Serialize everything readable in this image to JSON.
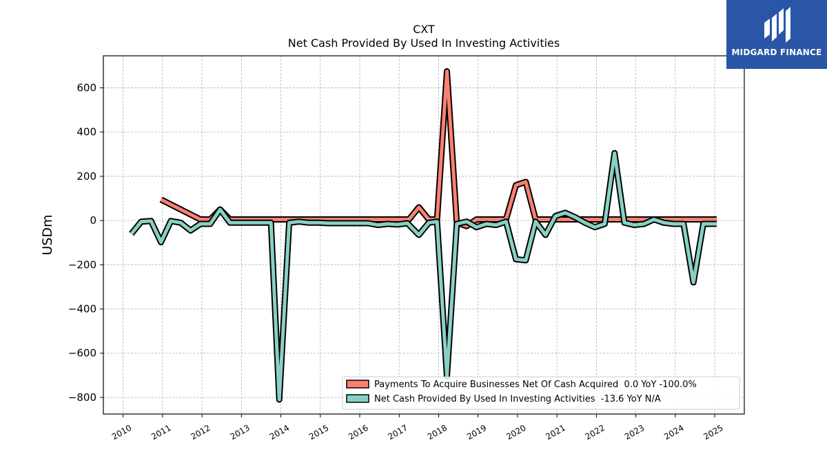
{
  "brand": {
    "name": "MIDGARD FINANCE",
    "color": "#2a56a8"
  },
  "chart_data": {
    "type": "line",
    "title": "CXT",
    "subtitle": "Net Cash Provided By Used In Investing Activities",
    "ylabel": "USDm",
    "xlabel": "",
    "ylim": [
      -875,
      745
    ],
    "xlim": [
      2009.5,
      2025.75
    ],
    "yticks": [
      -800,
      -600,
      -400,
      -200,
      0,
      200,
      400,
      600
    ],
    "xticks": [
      2010,
      2011,
      2012,
      2013,
      2014,
      2015,
      2016,
      2017,
      2018,
      2019,
      2020,
      2021,
      2022,
      2023,
      2024,
      2025
    ],
    "grid": true,
    "legend_position": "lower-right",
    "series": [
      {
        "name": "Payments To Acquire Businesses Net Of Cash Acquired  0.0 YoY -100.0%",
        "color": "#fa8072",
        "points": [
          [
            2010.96,
            95
          ],
          [
            2011.96,
            5
          ],
          [
            2012.21,
            5
          ],
          [
            2012.46,
            50
          ],
          [
            2012.71,
            5
          ],
          [
            2013.0,
            5
          ],
          [
            2014.0,
            5
          ],
          [
            2015.0,
            5
          ],
          [
            2016.0,
            5
          ],
          [
            2017.0,
            5
          ],
          [
            2017.25,
            5
          ],
          [
            2017.5,
            60
          ],
          [
            2017.75,
            5
          ],
          [
            2017.96,
            5
          ],
          [
            2018.21,
            675
          ],
          [
            2018.46,
            -10
          ],
          [
            2018.71,
            -25
          ],
          [
            2018.96,
            5
          ],
          [
            2019.21,
            5
          ],
          [
            2019.46,
            5
          ],
          [
            2019.71,
            5
          ],
          [
            2019.96,
            160
          ],
          [
            2020.21,
            175
          ],
          [
            2020.46,
            5
          ],
          [
            2020.71,
            5
          ],
          [
            2020.96,
            5
          ],
          [
            2021.21,
            5
          ],
          [
            2021.46,
            5
          ],
          [
            2021.71,
            5
          ],
          [
            2021.96,
            5
          ],
          [
            2022.21,
            5
          ],
          [
            2022.46,
            5
          ],
          [
            2022.71,
            5
          ],
          [
            2023.0,
            5
          ],
          [
            2024.0,
            5
          ],
          [
            2025.05,
            5
          ]
        ]
      },
      {
        "name": "Net Cash Provided By Used In Investing Activities  -13.6 YoY N/A",
        "color": "#88d0c4",
        "points": [
          [
            2010.21,
            -60
          ],
          [
            2010.46,
            -5
          ],
          [
            2010.71,
            -2
          ],
          [
            2010.96,
            -98
          ],
          [
            2011.21,
            -2
          ],
          [
            2011.46,
            -10
          ],
          [
            2011.71,
            -45
          ],
          [
            2011.96,
            -15
          ],
          [
            2012.21,
            -15
          ],
          [
            2012.46,
            50
          ],
          [
            2012.71,
            -10
          ],
          [
            2012.96,
            -10
          ],
          [
            2013.21,
            -10
          ],
          [
            2013.5,
            -10
          ],
          [
            2013.75,
            -10
          ],
          [
            2013.96,
            -810
          ],
          [
            2014.21,
            -10
          ],
          [
            2014.46,
            -5
          ],
          [
            2014.71,
            -10
          ],
          [
            2014.96,
            -10
          ],
          [
            2015.21,
            -12
          ],
          [
            2015.46,
            -12
          ],
          [
            2015.71,
            -12
          ],
          [
            2015.96,
            -12
          ],
          [
            2016.21,
            -12
          ],
          [
            2016.46,
            -20
          ],
          [
            2016.71,
            -15
          ],
          [
            2016.96,
            -18
          ],
          [
            2017.21,
            -12
          ],
          [
            2017.5,
            -65
          ],
          [
            2017.75,
            -10
          ],
          [
            2017.96,
            -5
          ],
          [
            2018.21,
            -705
          ],
          [
            2018.46,
            -15
          ],
          [
            2018.71,
            -5
          ],
          [
            2018.96,
            -30
          ],
          [
            2019.21,
            -15
          ],
          [
            2019.46,
            -20
          ],
          [
            2019.71,
            -5
          ],
          [
            2019.96,
            -175
          ],
          [
            2020.21,
            -180
          ],
          [
            2020.46,
            -5
          ],
          [
            2020.71,
            -65
          ],
          [
            2020.96,
            20
          ],
          [
            2021.21,
            35
          ],
          [
            2021.46,
            15
          ],
          [
            2021.71,
            -10
          ],
          [
            2021.96,
            -30
          ],
          [
            2022.21,
            -15
          ],
          [
            2022.46,
            305
          ],
          [
            2022.71,
            -10
          ],
          [
            2022.96,
            -20
          ],
          [
            2023.21,
            -15
          ],
          [
            2023.46,
            5
          ],
          [
            2023.71,
            -10
          ],
          [
            2023.96,
            -15
          ],
          [
            2024.21,
            -15
          ],
          [
            2024.46,
            -280
          ],
          [
            2024.71,
            -15
          ],
          [
            2024.96,
            -15
          ],
          [
            2025.05,
            -15
          ]
        ]
      }
    ]
  }
}
